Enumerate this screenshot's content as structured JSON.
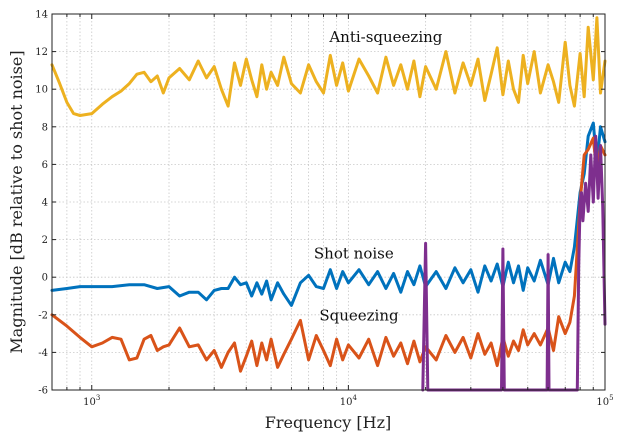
{
  "chart_data": {
    "type": "line",
    "xlabel": "Frequency [Hz]",
    "ylabel": "Magnitude [dB relative to shot noise]",
    "xscale": "log",
    "xlim": [
      700,
      100000
    ],
    "ylim": [
      -6,
      14
    ],
    "yticks": [
      -6,
      -4,
      -2,
      0,
      2,
      4,
      6,
      8,
      10,
      12,
      14
    ],
    "ytick_labels": [
      "-6",
      "-4",
      "-2",
      "0",
      "2",
      "4",
      "6",
      "8",
      "10",
      "12",
      "14"
    ],
    "xticks": [
      1000,
      10000,
      100000
    ],
    "xtick_labels": [
      {
        "base": "10",
        "exp": "3"
      },
      {
        "base": "10",
        "exp": "4"
      },
      {
        "base": "10",
        "exp": "5"
      }
    ],
    "grid": true,
    "annotations": [
      {
        "text": "Anti-squeezing",
        "x": 14000,
        "y": 12.5
      },
      {
        "text": "Shot noise",
        "x": 10500,
        "y": 1.0
      },
      {
        "text": "Squeezing",
        "x": 11000,
        "y": -2.3
      }
    ],
    "series": [
      {
        "color": "#EDB120",
        "x": [
          700,
          750,
          800,
          850,
          900,
          1000,
          1100,
          1200,
          1300,
          1400,
          1500,
          1600,
          1700,
          1800,
          1900,
          2000,
          2200,
          2400,
          2600,
          2800,
          3000,
          3200,
          3400,
          3600,
          3800,
          4000,
          4200,
          4400,
          4600,
          4800,
          5000,
          5300,
          5600,
          6000,
          6500,
          7000,
          7500,
          8000,
          8500,
          9000,
          9500,
          10000,
          11000,
          12000,
          13000,
          14000,
          15000,
          16000,
          17000,
          18000,
          19000,
          20000,
          22000,
          24000,
          26000,
          28000,
          30000,
          32000,
          34000,
          36000,
          38000,
          40000,
          42000,
          44000,
          46000,
          48000,
          50000,
          53000,
          56000,
          60000,
          63000,
          66000,
          70000,
          73000,
          76000,
          80000,
          83000,
          86000,
          90000,
          93000,
          96000,
          100000
        ],
        "values": [
          11.3,
          10.3,
          9.3,
          8.7,
          8.6,
          8.7,
          9.2,
          9.6,
          9.9,
          10.3,
          10.8,
          10.9,
          10.4,
          10.7,
          9.8,
          10.6,
          11.1,
          10.5,
          11.5,
          10.6,
          11.2,
          10.0,
          9.1,
          11.4,
          10.2,
          11.6,
          10.5,
          9.6,
          11.3,
          10.0,
          10.9,
          10.2,
          11.7,
          10.3,
          9.8,
          11.3,
          10.4,
          9.8,
          11.8,
          10.2,
          11.4,
          9.9,
          11.6,
          10.7,
          9.8,
          11.7,
          10.2,
          11.3,
          10.0,
          11.5,
          9.6,
          11.2,
          10.0,
          12.0,
          9.8,
          11.4,
          10.2,
          11.6,
          9.4,
          10.8,
          12.2,
          9.7,
          11.5,
          10.0,
          9.3,
          11.8,
          10.3,
          12.0,
          9.8,
          11.3,
          10.4,
          9.3,
          12.5,
          10.2,
          9.1,
          11.9,
          9.6,
          13.3,
          10.5,
          13.8,
          9.8,
          11.5
        ]
      },
      {
        "color": "#0072BD",
        "x": [
          700,
          800,
          900,
          1000,
          1200,
          1400,
          1600,
          1800,
          2000,
          2200,
          2400,
          2600,
          2800,
          3000,
          3200,
          3400,
          3600,
          3800,
          4000,
          4200,
          4400,
          4600,
          4800,
          5000,
          5300,
          5600,
          6000,
          6500,
          7000,
          7500,
          8000,
          8500,
          9000,
          9500,
          10000,
          11000,
          12000,
          13000,
          14000,
          15000,
          16000,
          17000,
          18000,
          19000,
          20000,
          22000,
          24000,
          26000,
          28000,
          30000,
          32000,
          34000,
          36000,
          38000,
          40000,
          42000,
          44000,
          46000,
          48000,
          50000,
          53000,
          56000,
          60000,
          63000,
          66000,
          70000,
          73000,
          76000,
          80000,
          83000,
          86000,
          90000,
          93000,
          96000,
          100000
        ],
        "values": [
          -0.7,
          -0.6,
          -0.5,
          -0.5,
          -0.5,
          -0.4,
          -0.4,
          -0.6,
          -0.5,
          -1.0,
          -0.8,
          -0.8,
          -1.2,
          -0.7,
          -0.6,
          -0.6,
          0.0,
          -0.4,
          -0.3,
          -1.0,
          -0.3,
          -0.9,
          -0.2,
          -1.2,
          -0.3,
          -0.9,
          -1.5,
          -0.3,
          0.1,
          -0.5,
          -0.6,
          0.4,
          -0.6,
          0.3,
          -0.3,
          0.4,
          -0.4,
          0.3,
          -0.6,
          0.2,
          -0.8,
          0.3,
          -0.4,
          0.6,
          -0.5,
          0.3,
          -0.6,
          0.5,
          -0.3,
          0.4,
          -0.8,
          0.6,
          -0.2,
          0.7,
          -0.5,
          0.8,
          -0.3,
          0.6,
          -0.7,
          0.5,
          -0.2,
          0.9,
          -0.4,
          1.0,
          -0.3,
          0.8,
          0.3,
          1.6,
          4.5,
          5.5,
          7.5,
          8.2,
          6.0,
          8.0,
          7.2
        ]
      },
      {
        "color": "#D95319",
        "x": [
          700,
          800,
          900,
          1000,
          1100,
          1200,
          1300,
          1400,
          1500,
          1600,
          1700,
          1800,
          1900,
          2000,
          2200,
          2400,
          2600,
          2800,
          3000,
          3200,
          3400,
          3600,
          3800,
          4000,
          4200,
          4400,
          4600,
          4800,
          5000,
          5300,
          5600,
          6000,
          6500,
          7000,
          7500,
          8000,
          8500,
          9000,
          9500,
          10000,
          11000,
          12000,
          13000,
          14000,
          15000,
          16000,
          17000,
          18000,
          19000,
          20000,
          22000,
          24000,
          26000,
          28000,
          30000,
          32000,
          34000,
          36000,
          38000,
          40000,
          42000,
          44000,
          46000,
          48000,
          50000,
          53000,
          56000,
          60000,
          63000,
          66000,
          70000,
          73000,
          76000,
          80000,
          83000,
          86000,
          90000,
          93000,
          96000,
          100000
        ],
        "values": [
          -2.0,
          -2.6,
          -3.2,
          -3.7,
          -3.5,
          -3.2,
          -3.3,
          -4.4,
          -4.3,
          -3.3,
          -3.1,
          -3.9,
          -3.7,
          -3.6,
          -2.7,
          -3.7,
          -3.6,
          -4.4,
          -3.9,
          -4.8,
          -4.0,
          -3.5,
          -5.0,
          -4.2,
          -3.4,
          -4.7,
          -3.5,
          -4.4,
          -3.3,
          -4.8,
          -4.1,
          -3.3,
          -2.3,
          -4.4,
          -3.1,
          -3.9,
          -4.7,
          -3.3,
          -4.4,
          -3.6,
          -4.3,
          -3.3,
          -4.7,
          -3.2,
          -4.2,
          -3.5,
          -4.6,
          -3.4,
          -4.5,
          -3.7,
          -4.4,
          -3.1,
          -4.0,
          -3.2,
          -4.3,
          -3.0,
          -4.1,
          -3.5,
          -4.7,
          -3.2,
          -4.2,
          -3.4,
          -3.9,
          -2.8,
          -3.6,
          -3.0,
          -3.6,
          -2.7,
          -3.9,
          -2.1,
          -3.0,
          -2.4,
          -1.0,
          4.0,
          6.5,
          6.8,
          7.4,
          5.5,
          7.0,
          6.5
        ]
      },
      {
        "color": "#7E2F8E",
        "x": [
          19500,
          20000,
          20400,
          39500,
          40000,
          40500,
          59500,
          60000,
          60500,
          78000,
          79000,
          80000,
          81000,
          82000,
          84000,
          86000,
          88000,
          90000,
          92000,
          94000,
          96000,
          98000,
          100000
        ],
        "values": [
          -6.0,
          1.8,
          -6.0,
          -6.0,
          1.5,
          -6.0,
          -6.0,
          1.2,
          -6.0,
          -6.0,
          0.5,
          4.0,
          4.5,
          3.0,
          5.0,
          3.5,
          6.5,
          4.0,
          7.5,
          4.2,
          7.0,
          3.8,
          -2.5
        ]
      }
    ]
  }
}
